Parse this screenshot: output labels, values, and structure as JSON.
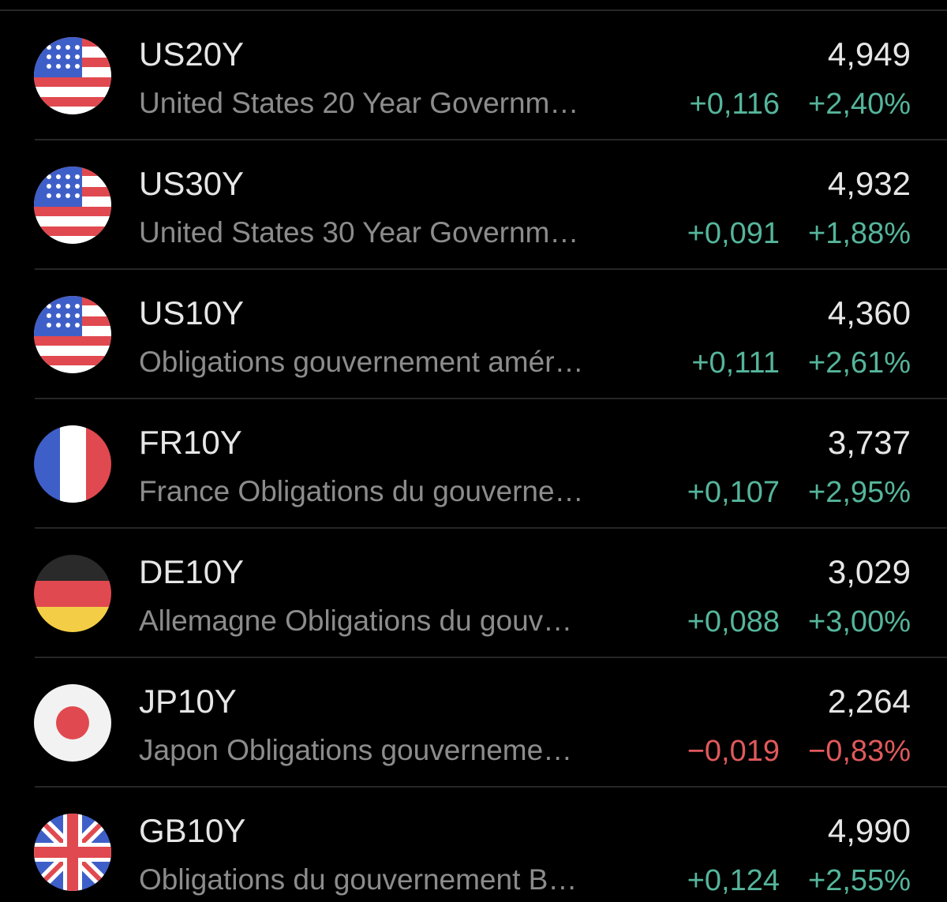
{
  "rows": [
    {
      "symbol": "US20Y",
      "name": "United States 20 Year Governm…",
      "price": "4,949",
      "change": "+0,116",
      "percent": "+2,40%",
      "color": "#55b59b"
    },
    {
      "symbol": "US30Y",
      "name": "United States 30 Year Governm…",
      "price": "4,932",
      "change": "+0,091",
      "percent": "+1,88%",
      "color": "#55b59b"
    },
    {
      "symbol": "US10Y",
      "name": "Obligations gouvernement amér…",
      "price": "4,360",
      "change": "+0,111",
      "percent": "+2,61%",
      "color": "#55b59b"
    },
    {
      "symbol": "FR10Y",
      "name": "France Obligations du gouverne…",
      "price": "3,737",
      "change": "+0,107",
      "percent": "+2,95%",
      "color": "#55b59b"
    },
    {
      "symbol": "DE10Y",
      "name": "Allemagne Obligations du gouv…",
      "price": "3,029",
      "change": "+0,088",
      "percent": "+3,00%",
      "color": "#55b59b"
    },
    {
      "symbol": "JP10Y",
      "name": "Japon Obligations gouverneme…",
      "price": "2,264",
      "change": "−0,019",
      "percent": "−0,83%",
      "color": "#e0595c"
    },
    {
      "symbol": "GB10Y",
      "name": "Obligations du gouvernement B…",
      "price": "4,990",
      "change": "+0,124",
      "percent": "+2,55%",
      "color": "#55b59b"
    }
  ]
}
